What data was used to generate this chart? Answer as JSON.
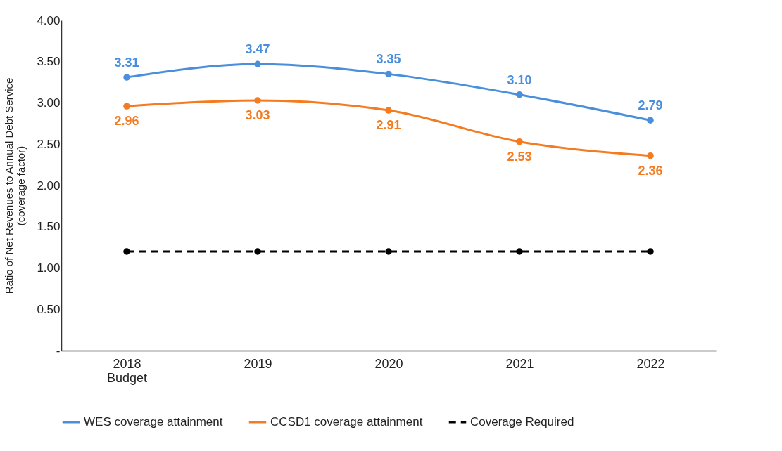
{
  "chart_data": {
    "type": "line",
    "ylabel": "Ratio of Net Revenues to Annual Debt Service\n(coverage factor)",
    "categories": [
      "2018\nBudget",
      "2019",
      "2020",
      "2021",
      "2022"
    ],
    "series": [
      {
        "name": "WES coverage attainment",
        "color": "#4a8fdb",
        "values": [
          3.31,
          3.47,
          3.35,
          3.1,
          2.79
        ],
        "value_labels": [
          "3.31",
          "3.47",
          "3.35",
          "3.10",
          "2.79"
        ],
        "line_style": "solid"
      },
      {
        "name": "CCSD1 coverage attainment",
        "color": "#f47b20",
        "values": [
          2.96,
          3.03,
          2.91,
          2.53,
          2.36
        ],
        "value_labels": [
          "2.96",
          "3.03",
          "2.91",
          "2.53",
          "2.36"
        ],
        "line_style": "solid"
      },
      {
        "name": "Coverage Required",
        "color": "#000000",
        "values": [
          1.2,
          1.2,
          1.2,
          1.2,
          1.2
        ],
        "line_style": "dashed"
      }
    ],
    "ylim": [
      0,
      4
    ],
    "yticks": [
      {
        "value": 0,
        "label": "-"
      },
      {
        "value": 0.5,
        "label": "0.50"
      },
      {
        "value": 1,
        "label": "1.00"
      },
      {
        "value": 1.5,
        "label": "1.50"
      },
      {
        "value": 2,
        "label": "2.00"
      },
      {
        "value": 2.5,
        "label": "2.50"
      },
      {
        "value": 3,
        "label": "3.00"
      },
      {
        "value": 3.5,
        "label": "3.50"
      },
      {
        "value": 4,
        "label": "4.00"
      }
    ],
    "marker": "circle",
    "legend": "bottom",
    "grid": false
  }
}
